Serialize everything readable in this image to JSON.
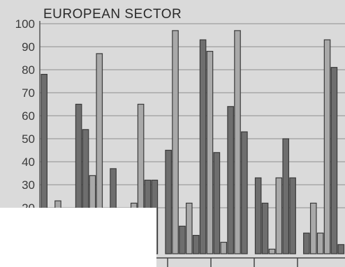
{
  "chart_data": {
    "type": "bar",
    "title": "EUROPEAN SECTOR",
    "xlabel": "",
    "ylabel": "",
    "ylim": [
      0,
      100
    ],
    "yticks": [
      20,
      30,
      40,
      50,
      60,
      70,
      80,
      90,
      100
    ],
    "grid": true,
    "legend": "none",
    "colors": {
      "background": "#dadada",
      "dark_bar": "#6e6e6e",
      "light_bar": "#a9a9a9",
      "grid": "#8d8d8d",
      "text": "#2a2a2a"
    },
    "values": [
      78,
      0,
      23,
      0,
      0,
      65,
      54,
      34,
      87,
      0,
      37,
      0,
      0,
      22,
      65,
      32,
      32,
      0,
      45,
      97,
      12,
      22,
      8,
      93,
      88,
      44,
      5,
      64,
      97,
      53,
      0,
      33,
      22,
      2,
      33,
      50,
      33,
      0,
      9,
      22,
      9,
      93,
      81,
      4
    ],
    "tones": [
      "dark",
      "light",
      "light",
      "light",
      "light",
      "dark",
      "dark",
      "light",
      "light",
      "light",
      "dark",
      "light",
      "light",
      "light",
      "light",
      "dark",
      "dark",
      "light",
      "dark",
      "light",
      "dark",
      "light",
      "dark",
      "dark",
      "light",
      "dark",
      "light",
      "dark",
      "light",
      "dark",
      "light",
      "dark",
      "dark",
      "light",
      "light",
      "dark",
      "dark",
      "light",
      "dark",
      "light",
      "light",
      "light",
      "dark",
      "dark"
    ]
  }
}
